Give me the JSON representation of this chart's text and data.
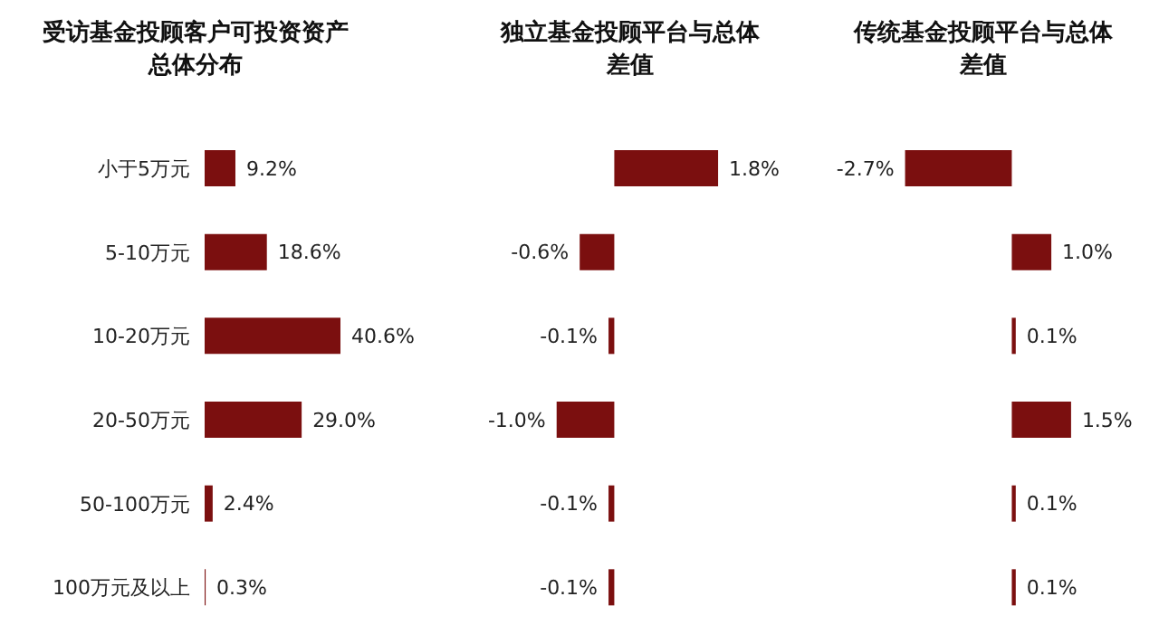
{
  "chart_data": [
    {
      "type": "bar",
      "orientation": "horizontal",
      "title": "受访基金投顾客户可投资资产总体分布",
      "categories": [
        "小于5万元",
        "5-10万元",
        "10-20万元",
        "20-50万元",
        "50-100万元",
        "100万元及以上"
      ],
      "values": [
        9.2,
        18.6,
        40.6,
        29.0,
        2.4,
        0.3
      ],
      "value_labels": [
        "9.2%",
        "18.6%",
        "40.6%",
        "29.0%",
        "2.4%",
        "0.3%"
      ],
      "color": "#7b0f0f"
    },
    {
      "type": "bar",
      "orientation": "horizontal",
      "title": "独立基金投顾平台与总体差值",
      "categories": [
        null,
        null,
        null,
        null,
        null,
        null
      ],
      "values": [
        1.8,
        -0.6,
        -0.1,
        -1.0,
        -0.1,
        -0.1
      ],
      "value_labels": [
        "1.8%",
        "-0.6%",
        "-0.1%",
        "-1.0%",
        "-0.1%",
        "-0.1%"
      ],
      "color": "#7b0f0f"
    },
    {
      "type": "bar",
      "orientation": "horizontal",
      "title": "传统基金投顾平台与总体差值",
      "categories": [
        null,
        null,
        null,
        null,
        null,
        null
      ],
      "values": [
        -2.7,
        1.0,
        0.1,
        1.5,
        0.1,
        0.1
      ],
      "value_labels": [
        "-2.7%",
        "1.0%",
        "0.1%",
        "1.5%",
        "0.1%",
        "0.1%"
      ],
      "color": "#7b0f0f"
    }
  ]
}
